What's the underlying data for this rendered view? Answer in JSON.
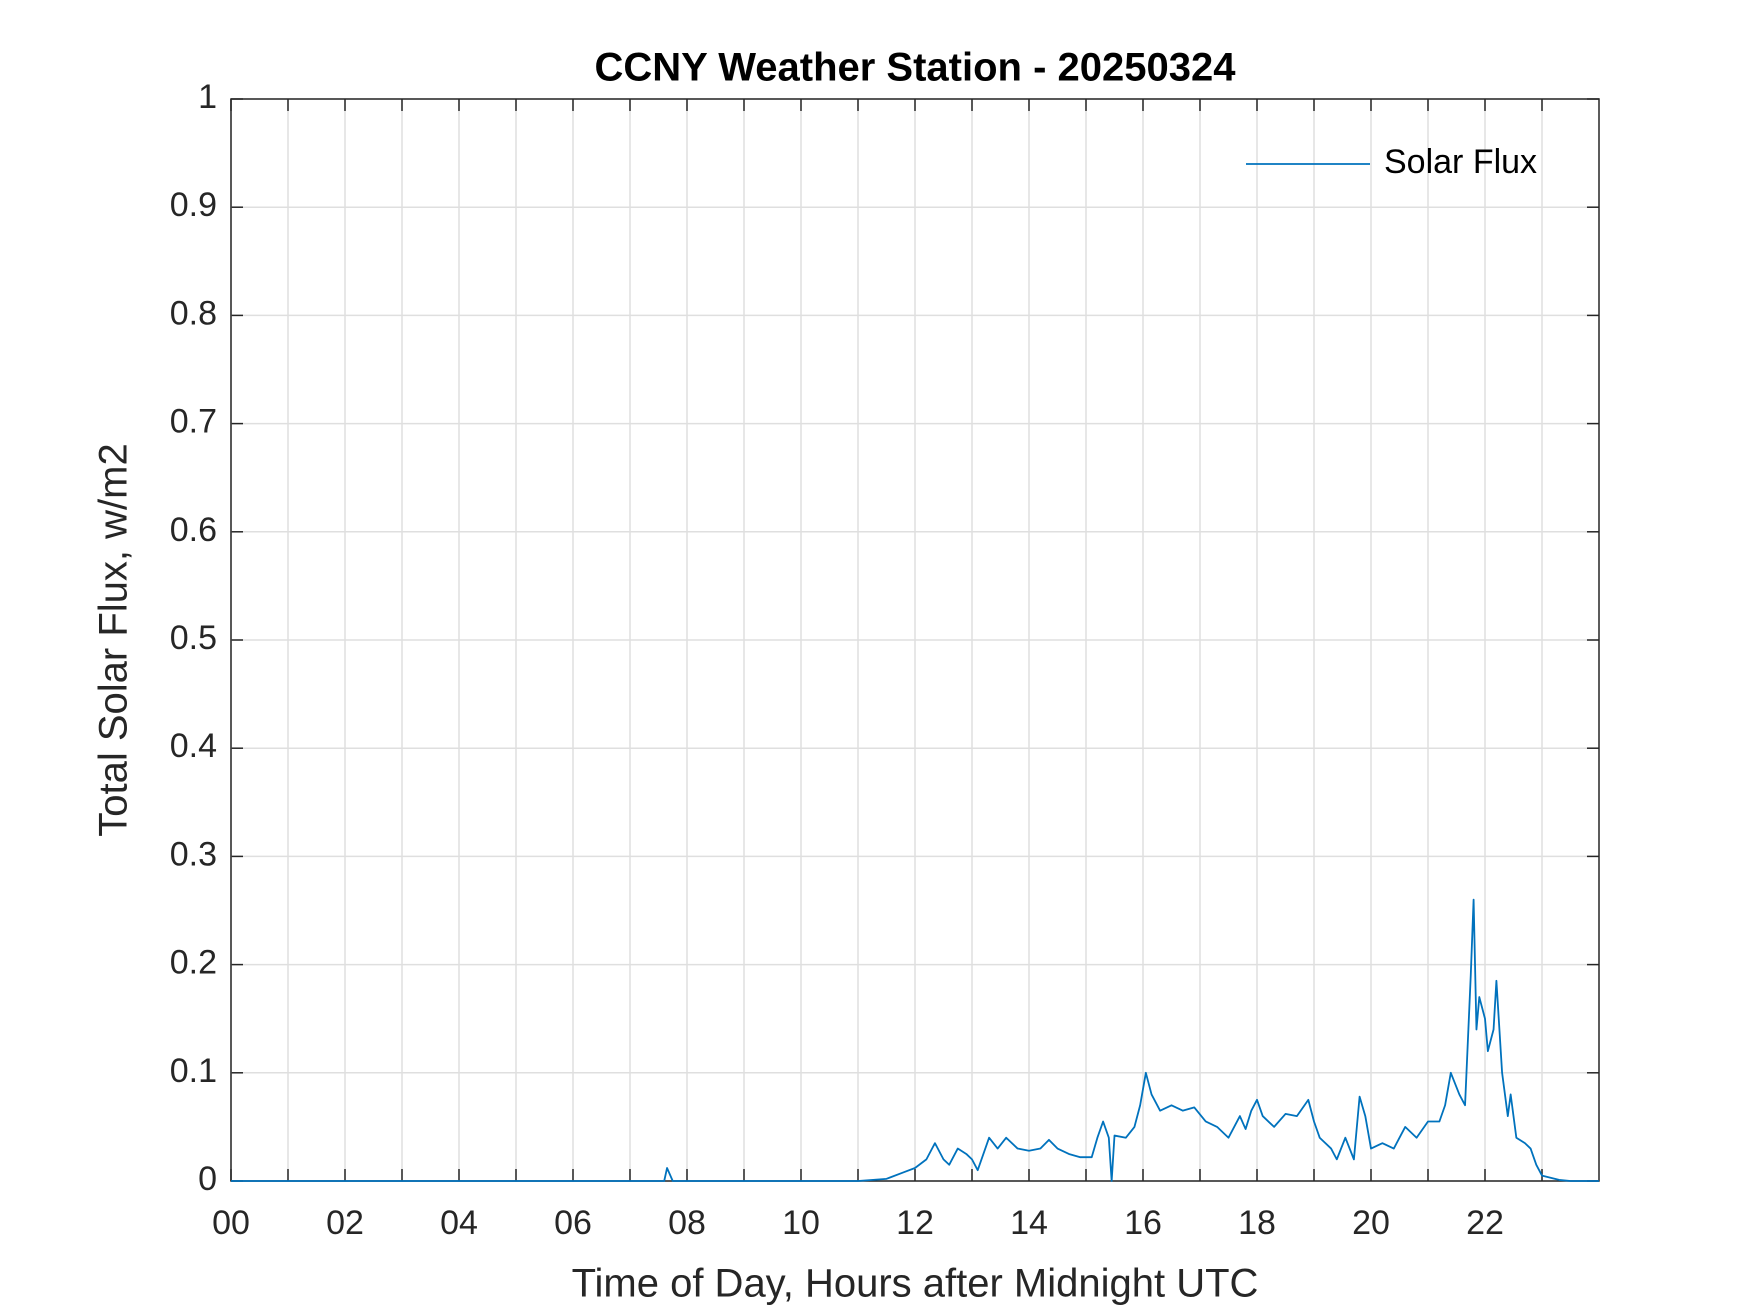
{
  "chart_data": {
    "type": "line",
    "title": "CCNY Weather Station - 20250324",
    "xlabel": "Time of Day, Hours after Midnight UTC",
    "ylabel": "Total Solar Flux, w/m2",
    "xlim": [
      0,
      24
    ],
    "ylim": [
      0,
      1
    ],
    "xticks": [
      {
        "value": 0,
        "label": "00"
      },
      {
        "value": 2,
        "label": "02"
      },
      {
        "value": 4,
        "label": "04"
      },
      {
        "value": 6,
        "label": "06"
      },
      {
        "value": 8,
        "label": "08"
      },
      {
        "value": 10,
        "label": "10"
      },
      {
        "value": 12,
        "label": "12"
      },
      {
        "value": 14,
        "label": "14"
      },
      {
        "value": 16,
        "label": "16"
      },
      {
        "value": 18,
        "label": "18"
      },
      {
        "value": 20,
        "label": "20"
      },
      {
        "value": 22,
        "label": "22"
      }
    ],
    "xminor_ticks": [
      1,
      3,
      5,
      7,
      9,
      11,
      13,
      15,
      17,
      19,
      21,
      23
    ],
    "yticks": [
      0,
      0.1,
      0.2,
      0.3,
      0.4,
      0.5,
      0.6,
      0.7,
      0.8,
      0.9,
      1
    ],
    "grid": true,
    "legend": "upper right",
    "series": [
      {
        "name": "Solar Flux",
        "color": "#0072bd",
        "x": [
          0,
          7.6,
          7.65,
          7.75,
          11.0,
          11.5,
          11.8,
          12.0,
          12.2,
          12.35,
          12.5,
          12.6,
          12.75,
          12.9,
          13.0,
          13.1,
          13.3,
          13.45,
          13.6,
          13.8,
          14.0,
          14.2,
          14.35,
          14.5,
          14.7,
          14.9,
          15.1,
          15.2,
          15.3,
          15.4,
          15.45,
          15.5,
          15.7,
          15.85,
          15.95,
          16.05,
          16.15,
          16.3,
          16.5,
          16.7,
          16.9,
          17.1,
          17.3,
          17.5,
          17.7,
          17.8,
          17.9,
          18.0,
          18.1,
          18.3,
          18.5,
          18.7,
          18.9,
          19.0,
          19.1,
          19.3,
          19.4,
          19.55,
          19.7,
          19.8,
          19.9,
          20.0,
          20.2,
          20.4,
          20.6,
          20.8,
          21.0,
          21.2,
          21.3,
          21.4,
          21.55,
          21.65,
          21.75,
          21.8,
          21.85,
          21.9,
          22.0,
          22.05,
          22.15,
          22.2,
          22.3,
          22.4,
          22.45,
          22.55,
          22.7,
          22.8,
          22.9,
          23.0,
          23.3,
          23.5,
          24
        ],
        "values": [
          0,
          0,
          0.012,
          0,
          0,
          0.002,
          0.008,
          0.012,
          0.02,
          0.035,
          0.02,
          0.015,
          0.03,
          0.025,
          0.02,
          0.01,
          0.04,
          0.03,
          0.04,
          0.03,
          0.028,
          0.03,
          0.038,
          0.03,
          0.025,
          0.022,
          0.022,
          0.04,
          0.055,
          0.04,
          0,
          0.042,
          0.04,
          0.05,
          0.07,
          0.1,
          0.08,
          0.065,
          0.07,
          0.065,
          0.068,
          0.055,
          0.05,
          0.04,
          0.06,
          0.048,
          0.065,
          0.075,
          0.06,
          0.05,
          0.062,
          0.06,
          0.075,
          0.055,
          0.04,
          0.03,
          0.02,
          0.04,
          0.02,
          0.078,
          0.06,
          0.03,
          0.035,
          0.03,
          0.05,
          0.04,
          0.055,
          0.055,
          0.07,
          0.1,
          0.08,
          0.07,
          0.19,
          0.26,
          0.14,
          0.17,
          0.15,
          0.12,
          0.14,
          0.185,
          0.1,
          0.06,
          0.08,
          0.04,
          0.035,
          0.03,
          0.015,
          0.005,
          0.001,
          0,
          0
        ]
      }
    ]
  }
}
